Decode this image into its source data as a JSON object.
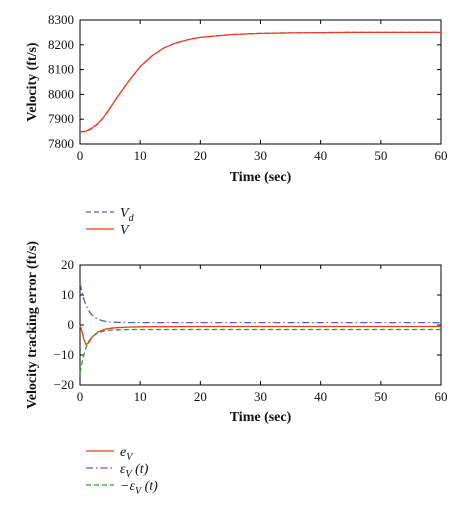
{
  "chart_data": [
    {
      "type": "line",
      "title": "",
      "xlabel": "Time (sec)",
      "ylabel": "Velocity (ft/s)",
      "xlim": [
        0,
        60
      ],
      "ylim": [
        7800,
        8300
      ],
      "xticks": [
        "0",
        "10",
        "20",
        "30",
        "40",
        "50",
        "60"
      ],
      "yticks": [
        "7800",
        "7900",
        "8000",
        "8100",
        "8200",
        "8300"
      ],
      "grid": false,
      "legend_placement": "below",
      "series": [
        {
          "name": "V_d",
          "legend_label": "V",
          "legend_sub": "d",
          "color": "#6a4fb0",
          "dash": "dashed",
          "x": [
            0,
            1,
            2,
            3,
            4,
            5,
            6,
            8,
            10,
            12,
            14,
            16,
            18,
            20,
            25,
            30,
            35,
            40,
            45,
            50,
            55,
            60
          ],
          "y": [
            7850,
            7850,
            7862,
            7882,
            7910,
            7945,
            7982,
            8050,
            8112,
            8156,
            8188,
            8208,
            8221,
            8230,
            8241,
            8246,
            8248,
            8249,
            8250,
            8250,
            8250,
            8250
          ]
        },
        {
          "name": "V",
          "legend_label": "V",
          "legend_sub": "",
          "color": "#e8401c",
          "dash": "solid",
          "x": [
            0,
            1,
            2,
            3,
            4,
            5,
            6,
            8,
            10,
            12,
            14,
            16,
            18,
            20,
            25,
            30,
            35,
            40,
            45,
            50,
            55,
            60
          ],
          "y": [
            7848,
            7852,
            7864,
            7883,
            7910,
            7945,
            7982,
            8050,
            8112,
            8156,
            8188,
            8208,
            8221,
            8230,
            8241,
            8246,
            8248,
            8249,
            8250,
            8250,
            8250,
            8250
          ]
        }
      ]
    },
    {
      "type": "line",
      "title": "",
      "xlabel": "Time (sec)",
      "ylabel": "Velocity tracking error (ft/s)",
      "xlim": [
        0,
        60
      ],
      "ylim": [
        -20,
        20
      ],
      "xticks": [
        "0",
        "10",
        "20",
        "30",
        "40",
        "50",
        "60"
      ],
      "yticks": [
        "−20",
        "−10",
        "0",
        "10",
        "20"
      ],
      "grid": false,
      "legend_placement": "below",
      "series": [
        {
          "name": "e_V",
          "legend_label": "e",
          "legend_sub": "V",
          "legend_suffix": "",
          "color": "#e8401c",
          "dash": "solid",
          "x": [
            0,
            0.3,
            0.6,
            1,
            1.5,
            2,
            3,
            4,
            5,
            6,
            8,
            10,
            20,
            30,
            40,
            50,
            60
          ],
          "y": [
            0,
            -2,
            -4.5,
            -6.5,
            -5.8,
            -4,
            -2.3,
            -1.5,
            -1.1,
            -0.9,
            -0.7,
            -0.6,
            -0.5,
            -0.5,
            -0.5,
            -0.5,
            -0.5
          ]
        },
        {
          "name": "ε_V (t)",
          "legend_label": "ε",
          "legend_sub": "V",
          "legend_suffix": " (t)",
          "color": "#4a5fc8",
          "dash": "dashdot",
          "x": [
            0,
            0.5,
            1,
            1.5,
            2,
            3,
            4,
            5,
            6,
            8,
            10,
            20,
            30,
            40,
            50,
            60
          ],
          "y": [
            14,
            9.5,
            6.5,
            4.6,
            3.3,
            1.9,
            1.3,
            1.0,
            0.9,
            0.8,
            0.8,
            0.8,
            0.8,
            0.8,
            0.8,
            0.8
          ]
        },
        {
          "name": "−ε_V (t)",
          "legend_label": "−ε",
          "legend_sub": "V",
          "legend_suffix": " (t)",
          "color": "#3f8f3a",
          "dash": "dashed",
          "x": [
            0,
            0.5,
            1,
            1.5,
            2,
            3,
            4,
            5,
            6,
            8,
            10,
            20,
            30,
            40,
            50,
            60
          ],
          "y": [
            -16,
            -11,
            -7.5,
            -5.3,
            -3.9,
            -2.6,
            -2.0,
            -1.7,
            -1.6,
            -1.5,
            -1.5,
            -1.5,
            -1.5,
            -1.5,
            -1.5,
            -1.5
          ]
        }
      ]
    }
  ]
}
